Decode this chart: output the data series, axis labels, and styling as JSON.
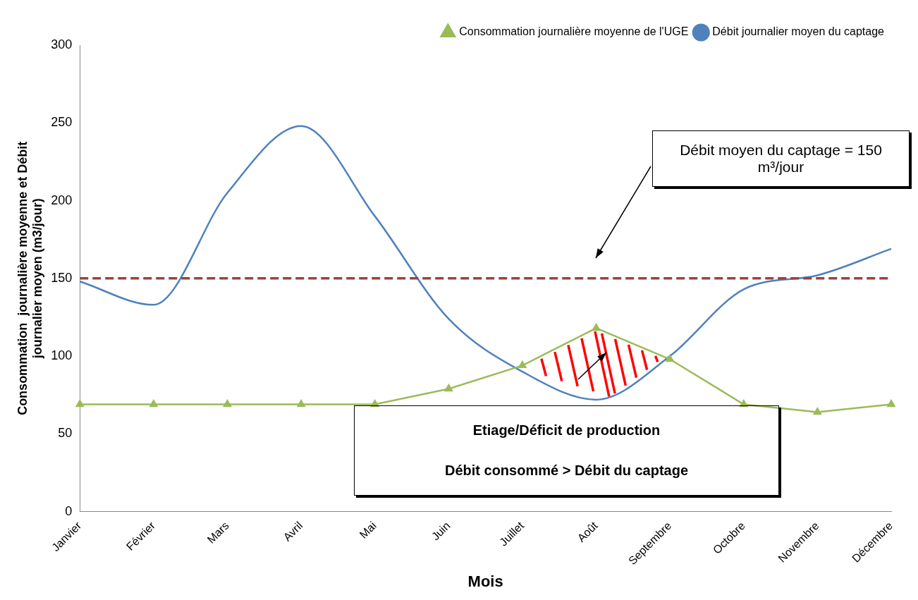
{
  "chart_data": {
    "type": "line",
    "xlabel": "Mois",
    "ylabel": "Consommation  journalière moyenne et Débit journalier moyen (m3/jour)",
    "categories": [
      "Janvier",
      "Février",
      "Mars",
      "Avril",
      "Mai",
      "Juin",
      "Juillet",
      "Août",
      "Septembre",
      "Octobre",
      "Novembre",
      "Décembre"
    ],
    "series": [
      {
        "name": "Consommation journalière moyenne de l'UGE",
        "color": "#9bbb59",
        "marker": "triangle",
        "values": [
          69,
          69,
          69,
          69,
          69,
          79,
          94,
          118,
          98,
          69,
          64,
          69
        ]
      },
      {
        "name": "Débit journalier moyen du captage",
        "color": "#4f81bd",
        "marker": "none",
        "values": [
          148,
          133,
          205,
          248,
          190,
          124,
          90,
          72,
          100,
          143,
          152,
          169
        ]
      }
    ],
    "ylim": [
      0,
      300
    ],
    "yticks": [
      0,
      50,
      100,
      150,
      200,
      250,
      300
    ],
    "grid": false,
    "legend": "top right",
    "ref_lines": [
      {
        "axis": "y",
        "value": 150,
        "color": "#a0403c",
        "line_style": "dashed"
      }
    ],
    "annotations": [
      "Débit moyen du   captage = 150 m³/jour",
      "Etiage/Déficit de production",
      "Débit consommé > Débit du captage"
    ]
  }
}
